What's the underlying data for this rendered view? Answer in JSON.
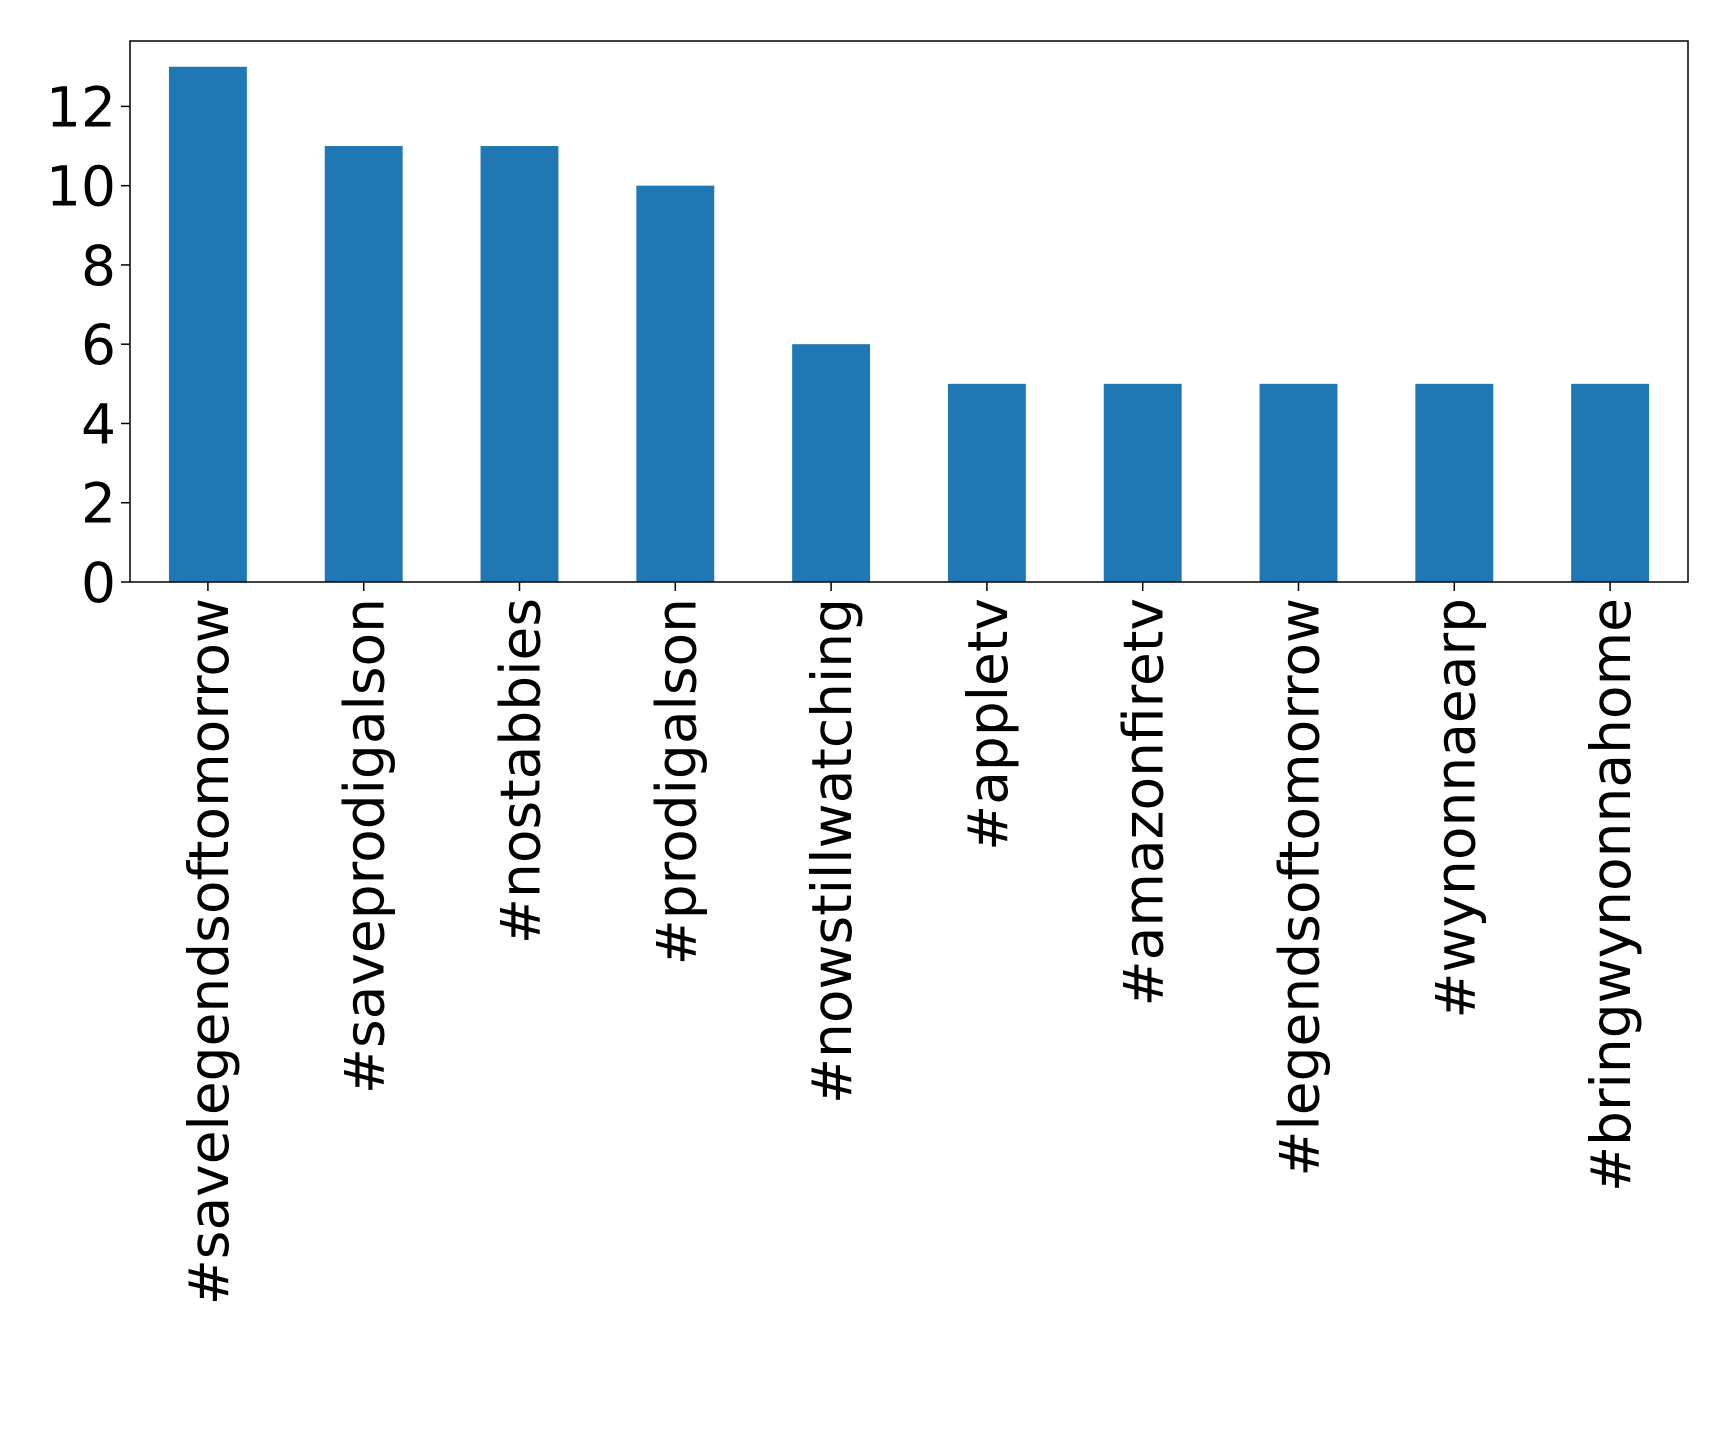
{
  "chart_data": {
    "type": "bar",
    "categories": [
      "#savelegendsoftomorrow",
      "#saveprodigalson",
      "#nostabbies",
      "#prodigalson",
      "#nowstillwatching",
      "#appletv",
      "#amazonfiretv",
      "#legendsoftomorrow",
      "#wynonnaearp",
      "#bringwynonnahome"
    ],
    "values": [
      13,
      11,
      11,
      10,
      6,
      5,
      5,
      5,
      5,
      5
    ],
    "color": "#1f77b4",
    "ylim": [
      0,
      13.65
    ],
    "yticks": [
      0,
      2,
      4,
      6,
      8,
      10,
      12
    ],
    "grid": false
  }
}
